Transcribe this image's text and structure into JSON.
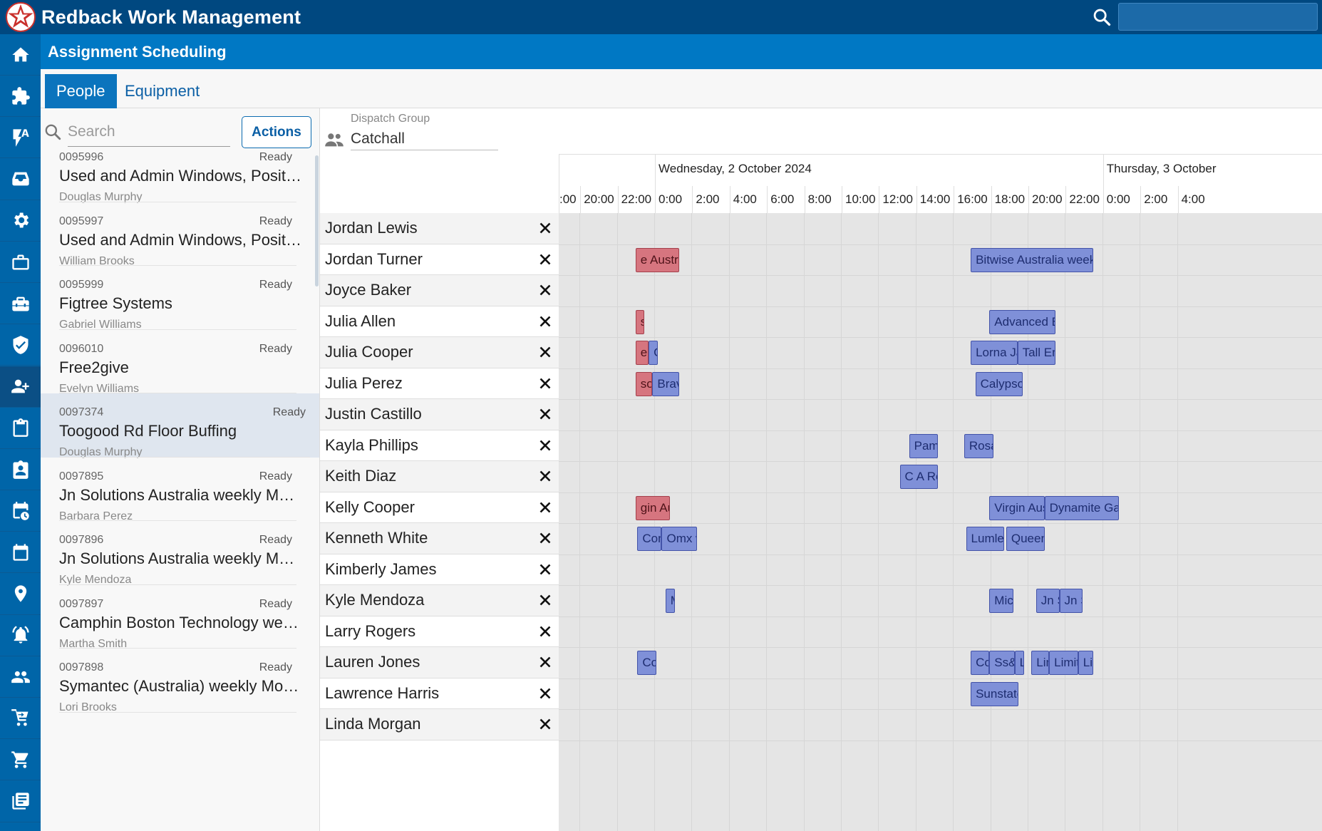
{
  "app": {
    "title": "Redback Work Management",
    "page_title": "Assignment Scheduling",
    "brand_color": "#004880",
    "accent_color": "#0078c4"
  },
  "nav_icons": [
    "home-icon",
    "extensions-icon",
    "auto-flash-icon",
    "inbox-tray-icon",
    "settings-gear-icon",
    "briefcase-icon",
    "toolbox-icon",
    "verified-badge-icon",
    "people-assign-icon",
    "clipboard-icon",
    "assignment-ind-icon",
    "calendar-clock-icon",
    "calendar-icon",
    "location-pin-icon",
    "alarm-bell-icon",
    "group-icon",
    "cart-arrow-icon",
    "basket-icon",
    "library-icon"
  ],
  "tabs": [
    {
      "label": "People",
      "active": true
    },
    {
      "label": "Equipment",
      "active": false
    }
  ],
  "list": {
    "search_placeholder": "Search",
    "actions_label": "Actions",
    "items": [
      {
        "number": "0095996",
        "status": "Ready",
        "title": "Used and Admin Windows, Positio...",
        "person": "Douglas Murphy"
      },
      {
        "number": "0095997",
        "status": "Ready",
        "title": "Used and Admin Windows, Positio...",
        "person": "William Brooks"
      },
      {
        "number": "0095999",
        "status": "Ready",
        "title": "Figtree Systems",
        "person": "Gabriel Williams"
      },
      {
        "number": "0096010",
        "status": "Ready",
        "title": "Free2give",
        "person": "Evelyn Williams"
      },
      {
        "number": "0097374",
        "status": "Ready",
        "title": "Toogood Rd Floor Buffing",
        "person": "Douglas Murphy",
        "selected": true
      },
      {
        "number": "0097895",
        "status": "Ready",
        "title": "Jn Solutions Australia weekly Mon...",
        "person": "Barbara Perez"
      },
      {
        "number": "0097896",
        "status": "Ready",
        "title": "Jn Solutions Australia weekly Mon...",
        "person": "Kyle Mendoza"
      },
      {
        "number": "0097897",
        "status": "Ready",
        "title": "Camphin Boston Technology wee...",
        "person": "Martha Smith"
      },
      {
        "number": "0097898",
        "status": "Ready",
        "title": "Symantec (Australia) weekly Mon ...",
        "person": "Lori Brooks"
      }
    ]
  },
  "dispatch": {
    "label": "Dispatch Group",
    "value": "Catchall"
  },
  "timeline": {
    "days": [
      {
        "label": "Wednesday, 2 October 2024"
      },
      {
        "label": "Thursday, 3 October"
      }
    ],
    "hours": [
      ":00",
      "20:00",
      "22:00",
      "0:00",
      "2:00",
      "4:00",
      "6:00",
      "8:00",
      "10:00",
      "12:00",
      "14:00",
      "16:00",
      "18:00",
      "20:00",
      "22:00",
      "0:00",
      "2:00",
      "4:00"
    ],
    "resources": [
      {
        "name": "Jordan Lewis",
        "appointments": []
      },
      {
        "name": "Jordan Turner",
        "appointments": [
          {
            "label": "e Australia",
            "start_hour": -1,
            "end_hour": 1.33,
            "color": "red"
          },
          {
            "label": "Bitwise Australia weekly",
            "start_hour": 16.95,
            "end_hour": 23.5,
            "color": "blue"
          }
        ]
      },
      {
        "name": "Joyce Baker",
        "appointments": []
      },
      {
        "name": "Julia Allen",
        "appointments": [
          {
            "label": "s T",
            "start_hour": -1,
            "end_hour": -0.55,
            "color": "red"
          },
          {
            "label": "Advanced Bu",
            "start_hour": 17.95,
            "end_hour": 21.5,
            "color": "blue"
          }
        ]
      },
      {
        "name": "Julia Cooper",
        "appointments": [
          {
            "label": "en",
            "start_hour": -1,
            "end_hour": -0.3,
            "color": "red"
          },
          {
            "label": "C",
            "start_hour": -0.3,
            "end_hour": 0.2,
            "color": "blue"
          },
          {
            "label": "Lorna Ja",
            "start_hour": 16.95,
            "end_hour": 19.45,
            "color": "blue"
          },
          {
            "label": "Tall Em",
            "start_hour": 19.45,
            "end_hour": 21.5,
            "color": "blue"
          }
        ]
      },
      {
        "name": "Julia Perez",
        "appointments": [
          {
            "label": "so T",
            "start_hour": -1,
            "end_hour": -0.1,
            "color": "red"
          },
          {
            "label": "Bravur",
            "start_hour": -0.1,
            "end_hour": 1.33,
            "color": "blue"
          },
          {
            "label": "Calypso T",
            "start_hour": 17.2,
            "end_hour": 19.75,
            "color": "blue"
          }
        ]
      },
      {
        "name": "Justin Castillo",
        "appointments": []
      },
      {
        "name": "Kayla Phillips",
        "appointments": [
          {
            "label": "Pame",
            "start_hour": 13.65,
            "end_hour": 15.2,
            "color": "blue"
          },
          {
            "label": "Rosa",
            "start_hour": 16.6,
            "end_hour": 18.15,
            "color": "blue"
          }
        ]
      },
      {
        "name": "Keith Diaz",
        "appointments": [
          {
            "label": "C A Rea",
            "start_hour": 13.15,
            "end_hour": 15.2,
            "color": "blue"
          }
        ]
      },
      {
        "name": "Kelly Cooper",
        "appointments": [
          {
            "label": "gin Aust",
            "start_hour": -1,
            "end_hour": 0.85,
            "color": "red"
          },
          {
            "label": "Virgin Aust",
            "start_hour": 17.95,
            "end_hour": 20.9,
            "color": "blue"
          },
          {
            "label": "Dynamite Game",
            "start_hour": 20.9,
            "end_hour": 24.9,
            "color": "blue"
          }
        ]
      },
      {
        "name": "Kenneth White",
        "appointments": [
          {
            "label": "Con",
            "start_hour": -0.9,
            "end_hour": 0.4,
            "color": "blue"
          },
          {
            "label": "Omx w",
            "start_hour": 0.4,
            "end_hour": 2.3,
            "color": "blue"
          },
          {
            "label": "Lumley",
            "start_hour": 16.7,
            "end_hour": 18.75,
            "color": "blue"
          },
          {
            "label": "Queens",
            "start_hour": 18.85,
            "end_hour": 20.9,
            "color": "blue"
          }
        ]
      },
      {
        "name": "Kimberly James",
        "appointments": []
      },
      {
        "name": "Kyle Mendoza",
        "appointments": [
          {
            "label": "M",
            "start_hour": 0.6,
            "end_hour": 1.1,
            "color": "blue"
          },
          {
            "label": "Micl",
            "start_hour": 17.95,
            "end_hour": 19.25,
            "color": "blue"
          },
          {
            "label": "Jn S",
            "start_hour": 20.45,
            "end_hour": 21.7,
            "color": "blue"
          },
          {
            "label": "Jn S",
            "start_hour": 21.7,
            "end_hour": 22.95,
            "color": "blue"
          }
        ]
      },
      {
        "name": "Larry Rogers",
        "appointments": []
      },
      {
        "name": "Lauren Jones",
        "appointments": [
          {
            "label": "Cor",
            "start_hour": -0.9,
            "end_hour": 0.1,
            "color": "blue"
          },
          {
            "label": "Co",
            "start_hour": 16.95,
            "end_hour": 17.95,
            "color": "blue"
          },
          {
            "label": "Ss&a",
            "start_hour": 17.95,
            "end_hour": 19.3,
            "color": "blue"
          },
          {
            "label": "L",
            "start_hour": 19.3,
            "end_hour": 19.8,
            "color": "blue"
          },
          {
            "label": "Lim",
            "start_hour": 20.2,
            "end_hour": 21.15,
            "color": "blue"
          },
          {
            "label": "Limit",
            "start_hour": 21.15,
            "end_hour": 22.7,
            "color": "blue"
          },
          {
            "label": "Lir",
            "start_hour": 22.7,
            "end_hour": 23.5,
            "color": "blue"
          }
        ]
      },
      {
        "name": "Lawrence Harris",
        "appointments": [
          {
            "label": "Sunstate",
            "start_hour": 16.95,
            "end_hour": 19.5,
            "color": "blue"
          }
        ]
      },
      {
        "name": "Linda Morgan",
        "appointments": []
      }
    ]
  }
}
